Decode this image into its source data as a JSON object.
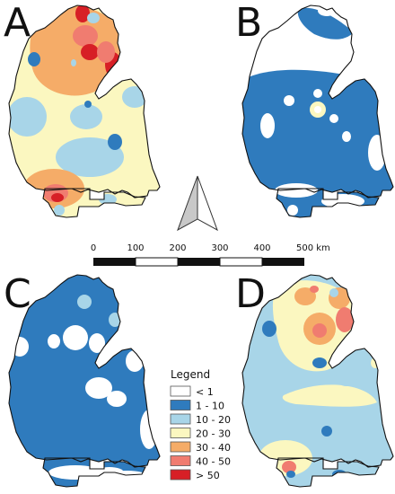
{
  "panels": [
    {
      "letter": "A"
    },
    {
      "letter": "B"
    },
    {
      "letter": "C"
    },
    {
      "letter": "D"
    }
  ],
  "scale_bar": {
    "ticks": [
      "0",
      "100",
      "200",
      "300",
      "400",
      "500 km"
    ]
  },
  "legend": {
    "title": "Legend",
    "classes": [
      {
        "label": "< 1",
        "color": "#ffffff"
      },
      {
        "label": "1 - 10",
        "color": "#2f7bbd"
      },
      {
        "label": "10 - 20",
        "color": "#a8d5e8"
      },
      {
        "label": "20 - 30",
        "color": "#fbf7c0"
      },
      {
        "label": "30 - 40",
        "color": "#f5ac68"
      },
      {
        "label": "40 - 50",
        "color": "#f07c70"
      },
      {
        "label": "> 50",
        "color": "#d71f26"
      }
    ]
  },
  "north_arrow": {
    "icon": "north-arrow-icon"
  }
}
